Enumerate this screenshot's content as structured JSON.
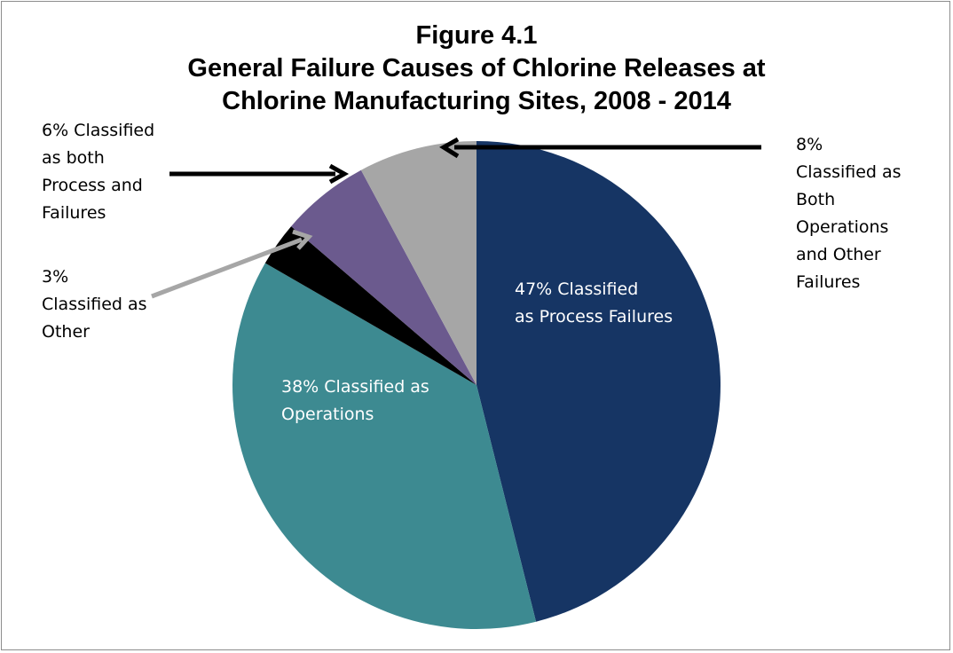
{
  "chart_data": {
    "type": "pie",
    "title_lines": [
      "Figure 4.1",
      "General Failure Causes of Chlorine Releases at",
      "Chlorine Manufacturing Sites, 2008 - 2014"
    ],
    "slices": [
      {
        "label_lines": [
          "47% Classified",
          "as Process Failures"
        ],
        "value": 47,
        "color": "#163564"
      },
      {
        "label_lines": [
          "38% Classified as",
          "Operations"
        ],
        "value": 38,
        "color": "#3d8a91"
      },
      {
        "label_lines": [
          "3%",
          "Classified as",
          "Other"
        ],
        "value": 3,
        "color": "#000000"
      },
      {
        "label_lines": [
          "6% Classified",
          "as both",
          "Process and",
          "Failures"
        ],
        "value": 6,
        "color": "#6b5a8e"
      },
      {
        "label_lines": [
          "8%",
          "Classified as",
          "Both",
          "Operations",
          "and Other",
          "Failures"
        ],
        "value": 8,
        "color": "#a6a6a6"
      }
    ],
    "start_angle": "top",
    "direction": "clockwise"
  }
}
